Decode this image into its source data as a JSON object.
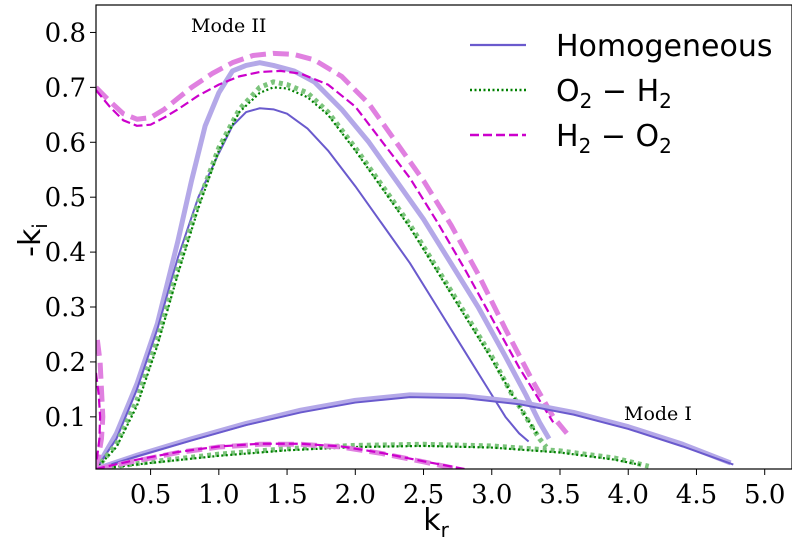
{
  "chart_data": {
    "type": "line",
    "xlabel": "k",
    "xlabel_sub": "r",
    "ylabel": "-k",
    "ylabel_sub": "i",
    "xlim": [
      0.1,
      5.2
    ],
    "ylim": [
      0.005,
      0.85
    ],
    "xticks": [
      0.5,
      1.0,
      1.5,
      2.0,
      2.5,
      3.0,
      3.5,
      4.0,
      4.5,
      5.0
    ],
    "xtick_labels": [
      "0.5",
      "1.0",
      "1.5",
      "2.0",
      "2.5",
      "3.0",
      "3.5",
      "4.0",
      "4.5",
      "5.0"
    ],
    "yticks": [
      0.1,
      0.2,
      0.3,
      0.4,
      0.5,
      0.6,
      0.7,
      0.8
    ],
    "ytick_labels": [
      "0.1",
      "0.2",
      "0.3",
      "0.4",
      "0.5",
      "0.6",
      "0.7",
      "0.8"
    ],
    "grid": false,
    "legend_position": "top-right",
    "legend": [
      {
        "label": "Homogeneous",
        "style": "solid",
        "color": "#6a5acd"
      },
      {
        "label": "O",
        "sub1": "2",
        "mid": " − H",
        "sub2": "2",
        "style": "dotted",
        "color": "#008000"
      },
      {
        "label": "H",
        "sub1": "2",
        "mid": " − O",
        "sub2": "2",
        "style": "dashed",
        "color": "#cc00cc"
      }
    ],
    "annotations": [
      {
        "text": "Mode II",
        "x": 1.12,
        "y": 0.8
      },
      {
        "text": "Mode I",
        "x": 4.25,
        "y": 0.1
      }
    ],
    "series": [
      {
        "key": "homo_modeII_thick",
        "family": "Homogeneous",
        "style": "solid",
        "color": "#b4a8e8",
        "width": 5,
        "points": [
          [
            0.1,
            0.005
          ],
          [
            0.25,
            0.07
          ],
          [
            0.4,
            0.16
          ],
          [
            0.55,
            0.27
          ],
          [
            0.7,
            0.42
          ],
          [
            0.8,
            0.53
          ],
          [
            0.9,
            0.63
          ],
          [
            1.0,
            0.69
          ],
          [
            1.1,
            0.73
          ],
          [
            1.2,
            0.74
          ],
          [
            1.3,
            0.745
          ],
          [
            1.4,
            0.74
          ],
          [
            1.55,
            0.73
          ],
          [
            1.7,
            0.71
          ],
          [
            1.9,
            0.66
          ],
          [
            2.1,
            0.6
          ],
          [
            2.3,
            0.53
          ],
          [
            2.5,
            0.46
          ],
          [
            2.7,
            0.38
          ],
          [
            2.9,
            0.3
          ],
          [
            3.1,
            0.21
          ],
          [
            3.25,
            0.14
          ],
          [
            3.35,
            0.09
          ],
          [
            3.42,
            0.06
          ]
        ]
      },
      {
        "key": "homo_modeII_thin",
        "family": "Homogeneous",
        "style": "solid",
        "color": "#6a5acd",
        "width": 2,
        "points": [
          [
            0.1,
            0.005
          ],
          [
            0.25,
            0.06
          ],
          [
            0.4,
            0.15
          ],
          [
            0.55,
            0.26
          ],
          [
            0.7,
            0.39
          ],
          [
            0.85,
            0.5
          ],
          [
            1.0,
            0.58
          ],
          [
            1.1,
            0.63
          ],
          [
            1.2,
            0.655
          ],
          [
            1.3,
            0.662
          ],
          [
            1.4,
            0.66
          ],
          [
            1.5,
            0.652
          ],
          [
            1.65,
            0.625
          ],
          [
            1.8,
            0.585
          ],
          [
            2.0,
            0.52
          ],
          [
            2.2,
            0.45
          ],
          [
            2.4,
            0.38
          ],
          [
            2.6,
            0.3
          ],
          [
            2.8,
            0.22
          ],
          [
            2.95,
            0.16
          ],
          [
            3.1,
            0.1
          ],
          [
            3.2,
            0.07
          ],
          [
            3.27,
            0.055
          ]
        ]
      },
      {
        "key": "o2h2_modeII_thick",
        "family": "O2 - H2",
        "style": "dotted",
        "color": "#7cc47c",
        "width": 5,
        "points": [
          [
            0.1,
            0.005
          ],
          [
            0.25,
            0.05
          ],
          [
            0.4,
            0.13
          ],
          [
            0.55,
            0.24
          ],
          [
            0.7,
            0.37
          ],
          [
            0.85,
            0.49
          ],
          [
            1.0,
            0.59
          ],
          [
            1.15,
            0.66
          ],
          [
            1.3,
            0.7
          ],
          [
            1.4,
            0.71
          ],
          [
            1.5,
            0.705
          ],
          [
            1.65,
            0.69
          ],
          [
            1.8,
            0.655
          ],
          [
            2.0,
            0.59
          ],
          [
            2.2,
            0.52
          ],
          [
            2.4,
            0.45
          ],
          [
            2.6,
            0.37
          ],
          [
            2.8,
            0.29
          ],
          [
            3.0,
            0.21
          ],
          [
            3.15,
            0.14
          ],
          [
            3.25,
            0.1
          ],
          [
            3.35,
            0.06
          ],
          [
            3.4,
            0.045
          ]
        ]
      },
      {
        "key": "o2h2_modeII_thin",
        "family": "O2 - H2",
        "style": "dotted",
        "color": "#008000",
        "width": 2.2,
        "points": [
          [
            0.1,
            0.005
          ],
          [
            0.25,
            0.045
          ],
          [
            0.4,
            0.12
          ],
          [
            0.55,
            0.23
          ],
          [
            0.7,
            0.36
          ],
          [
            0.85,
            0.48
          ],
          [
            1.0,
            0.585
          ],
          [
            1.15,
            0.655
          ],
          [
            1.3,
            0.69
          ],
          [
            1.4,
            0.7
          ],
          [
            1.5,
            0.698
          ],
          [
            1.65,
            0.682
          ],
          [
            1.8,
            0.65
          ],
          [
            2.0,
            0.585
          ],
          [
            2.2,
            0.515
          ],
          [
            2.4,
            0.445
          ],
          [
            2.6,
            0.365
          ],
          [
            2.8,
            0.285
          ],
          [
            3.0,
            0.205
          ],
          [
            3.15,
            0.14
          ],
          [
            3.25,
            0.1
          ],
          [
            3.33,
            0.07
          ]
        ]
      },
      {
        "key": "h2o2_modeII_thick",
        "family": "H2 - O2",
        "style": "dashed",
        "color": "#e080e0",
        "width": 5,
        "points": [
          [
            0.1,
            0.7
          ],
          [
            0.2,
            0.675
          ],
          [
            0.3,
            0.652
          ],
          [
            0.4,
            0.642
          ],
          [
            0.5,
            0.645
          ],
          [
            0.6,
            0.66
          ],
          [
            0.7,
            0.68
          ],
          [
            0.8,
            0.7
          ],
          [
            0.95,
            0.725
          ],
          [
            1.1,
            0.745
          ],
          [
            1.25,
            0.758
          ],
          [
            1.4,
            0.762
          ],
          [
            1.55,
            0.76
          ],
          [
            1.7,
            0.75
          ],
          [
            1.9,
            0.72
          ],
          [
            2.1,
            0.67
          ],
          [
            2.3,
            0.6
          ],
          [
            2.5,
            0.53
          ],
          [
            2.7,
            0.45
          ],
          [
            2.9,
            0.36
          ],
          [
            3.1,
            0.26
          ],
          [
            3.3,
            0.165
          ],
          [
            3.45,
            0.1
          ],
          [
            3.55,
            0.07
          ]
        ]
      },
      {
        "key": "h2o2_modeII_thin",
        "family": "H2 - O2",
        "style": "dashed",
        "color": "#cc00cc",
        "width": 2.2,
        "points": [
          [
            0.1,
            0.695
          ],
          [
            0.2,
            0.665
          ],
          [
            0.3,
            0.64
          ],
          [
            0.4,
            0.63
          ],
          [
            0.5,
            0.632
          ],
          [
            0.6,
            0.645
          ],
          [
            0.7,
            0.66
          ],
          [
            0.85,
            0.685
          ],
          [
            1.0,
            0.705
          ],
          [
            1.15,
            0.72
          ],
          [
            1.3,
            0.728
          ],
          [
            1.45,
            0.73
          ],
          [
            1.6,
            0.725
          ],
          [
            1.8,
            0.705
          ],
          [
            2.0,
            0.665
          ],
          [
            2.2,
            0.6
          ],
          [
            2.4,
            0.535
          ],
          [
            2.6,
            0.455
          ],
          [
            2.8,
            0.37
          ],
          [
            3.0,
            0.28
          ],
          [
            3.2,
            0.19
          ],
          [
            3.35,
            0.13
          ],
          [
            3.45,
            0.09
          ]
        ]
      },
      {
        "key": "homo_modeI_thick",
        "family": "Homogeneous",
        "style": "solid",
        "color": "#b4a8e8",
        "width": 5,
        "points": [
          [
            0.1,
            0.005
          ],
          [
            0.4,
            0.03
          ],
          [
            0.8,
            0.06
          ],
          [
            1.2,
            0.088
          ],
          [
            1.6,
            0.112
          ],
          [
            2.0,
            0.13
          ],
          [
            2.4,
            0.14
          ],
          [
            2.8,
            0.138
          ],
          [
            3.2,
            0.127
          ],
          [
            3.6,
            0.108
          ],
          [
            4.0,
            0.082
          ],
          [
            4.4,
            0.05
          ],
          [
            4.75,
            0.016
          ]
        ]
      },
      {
        "key": "homo_modeI_thin",
        "family": "Homogeneous",
        "style": "solid",
        "color": "#6a5acd",
        "width": 2,
        "points": [
          [
            0.1,
            0.005
          ],
          [
            0.4,
            0.028
          ],
          [
            0.8,
            0.057
          ],
          [
            1.2,
            0.085
          ],
          [
            1.6,
            0.108
          ],
          [
            2.0,
            0.126
          ],
          [
            2.4,
            0.136
          ],
          [
            2.8,
            0.134
          ],
          [
            3.2,
            0.123
          ],
          [
            3.6,
            0.104
          ],
          [
            4.0,
            0.078
          ],
          [
            4.4,
            0.046
          ],
          [
            4.77,
            0.013
          ]
        ]
      },
      {
        "key": "o2h2_modeI_thick",
        "family": "O2 - H2",
        "style": "dotted",
        "color": "#7cc47c",
        "width": 5,
        "points": [
          [
            0.1,
            0.005
          ],
          [
            0.5,
            0.018
          ],
          [
            1.0,
            0.032
          ],
          [
            1.5,
            0.042
          ],
          [
            2.0,
            0.048
          ],
          [
            2.5,
            0.05
          ],
          [
            3.0,
            0.047
          ],
          [
            3.5,
            0.038
          ],
          [
            3.9,
            0.025
          ],
          [
            4.15,
            0.01
          ]
        ]
      },
      {
        "key": "o2h2_modeI_thin",
        "family": "O2 - H2",
        "style": "dotted",
        "color": "#008000",
        "width": 2.2,
        "points": [
          [
            0.1,
            0.005
          ],
          [
            0.5,
            0.016
          ],
          [
            1.0,
            0.029
          ],
          [
            1.5,
            0.039
          ],
          [
            2.0,
            0.045
          ],
          [
            2.5,
            0.047
          ],
          [
            3.0,
            0.044
          ],
          [
            3.5,
            0.035
          ],
          [
            3.9,
            0.022
          ],
          [
            4.1,
            0.012
          ]
        ]
      },
      {
        "key": "h2o2_modeI_thick",
        "family": "H2 - O2",
        "style": "dashed",
        "color": "#e080e0",
        "width": 5,
        "points": [
          [
            0.1,
            0.005
          ],
          [
            0.4,
            0.02
          ],
          [
            0.7,
            0.035
          ],
          [
            1.0,
            0.045
          ],
          [
            1.3,
            0.05
          ],
          [
            1.6,
            0.05
          ],
          [
            1.9,
            0.045
          ],
          [
            2.2,
            0.033
          ],
          [
            2.5,
            0.018
          ],
          [
            2.75,
            0.005
          ]
        ]
      },
      {
        "key": "h2o2_modeI_thin",
        "family": "H2 - O2",
        "style": "dashed",
        "color": "#cc00cc",
        "width": 2.2,
        "points": [
          [
            0.1,
            0.005
          ],
          [
            0.4,
            0.022
          ],
          [
            0.7,
            0.036
          ],
          [
            1.0,
            0.046
          ],
          [
            1.3,
            0.051
          ],
          [
            1.6,
            0.051
          ],
          [
            1.9,
            0.046
          ],
          [
            2.2,
            0.034
          ],
          [
            2.5,
            0.019
          ],
          [
            2.8,
            0.005
          ]
        ]
      },
      {
        "key": "h2o2_edge_thick",
        "family": "H2 - O2",
        "style": "dashed",
        "color": "#e080e0",
        "width": 5,
        "points": [
          [
            0.11,
            0.24
          ],
          [
            0.13,
            0.2
          ],
          [
            0.14,
            0.15
          ],
          [
            0.15,
            0.1
          ],
          [
            0.14,
            0.06
          ],
          [
            0.12,
            0.03
          ],
          [
            0.1,
            0.01
          ]
        ]
      },
      {
        "key": "h2o2_edge_thin",
        "family": "H2 - O2",
        "style": "dashed",
        "color": "#cc00cc",
        "width": 2.2,
        "points": [
          [
            0.1,
            0.18
          ],
          [
            0.12,
            0.14
          ],
          [
            0.13,
            0.1
          ],
          [
            0.125,
            0.06
          ],
          [
            0.11,
            0.03
          ],
          [
            0.1,
            0.015
          ]
        ]
      }
    ]
  }
}
